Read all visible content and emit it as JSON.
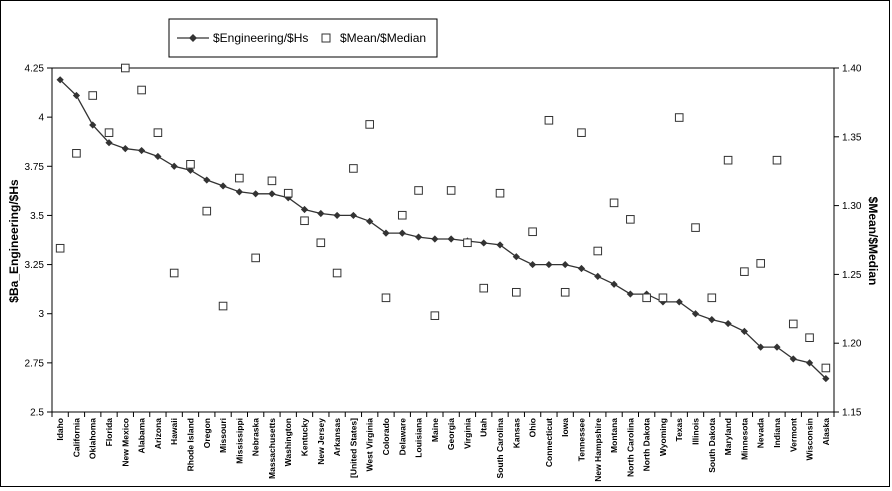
{
  "chart_data": {
    "type": "line",
    "categories": [
      "Idaho",
      "California",
      "Oklahoma",
      "Florida",
      "New Mexico",
      "Alabama",
      "Arizona",
      "Hawaii",
      "Rhode Island",
      "Oregon",
      "Missouri",
      "Mississippi",
      "Nebraska",
      "Massachusetts",
      "Washington",
      "Kentucky",
      "New Jersey",
      "Arkansas",
      "[United States]",
      "West Virginia",
      "Colorado",
      "Delaware",
      "Louisiana",
      "Maine",
      "Georgia",
      "Virginia",
      "Utah",
      "South Carolina",
      "Kansas",
      "Ohio",
      "Connecticut",
      "Iowa",
      "Tennessee",
      "New Hampshire",
      "Montana",
      "North Carolina",
      "North Dakota",
      "Wyoming",
      "Texas",
      "Illinois",
      "South Dakota",
      "Maryland",
      "Minnesota",
      "Nevada",
      "Indiana",
      "Vermont",
      "Wisconsin",
      "Alaska"
    ],
    "series": [
      {
        "name": "$Engineering/$Hs",
        "marker": "diamond",
        "axis": "left",
        "color": "#333333",
        "values": [
          4.19,
          4.11,
          3.96,
          3.87,
          3.84,
          3.83,
          3.8,
          3.75,
          3.73,
          3.68,
          3.65,
          3.62,
          3.61,
          3.61,
          3.59,
          3.53,
          3.51,
          3.5,
          3.5,
          3.47,
          3.41,
          3.41,
          3.39,
          3.38,
          3.38,
          3.37,
          3.36,
          3.35,
          3.29,
          3.25,
          3.25,
          3.25,
          3.23,
          3.19,
          3.15,
          3.1,
          3.1,
          3.06,
          3.06,
          3.0,
          2.97,
          2.95,
          2.91,
          2.83,
          2.83,
          2.77,
          2.75,
          2.67
        ]
      },
      {
        "name": "$Mean/$Median",
        "marker": "square-open",
        "axis": "right",
        "color": "#000000",
        "values": [
          1.269,
          1.338,
          1.38,
          1.353,
          1.4,
          1.384,
          1.353,
          1.251,
          1.33,
          1.296,
          1.227,
          1.32,
          1.262,
          1.318,
          1.309,
          1.289,
          1.273,
          1.251,
          1.327,
          1.359,
          1.233,
          1.293,
          1.311,
          1.22,
          1.311,
          1.273,
          1.24,
          1.309,
          1.237,
          1.281,
          1.362,
          1.237,
          1.353,
          1.267,
          1.302,
          1.29,
          1.233,
          1.233,
          1.364,
          1.284,
          1.233,
          1.333,
          1.252,
          1.258,
          1.333,
          1.214,
          1.204,
          1.182
        ]
      }
    ],
    "ylabel": "$Ba_Engineering/$Hs",
    "y2label": "$Mean/$Median",
    "ylim": [
      2.5,
      4.25
    ],
    "y2lim": [
      1.15,
      1.4
    ],
    "yticks": [
      "4.25",
      "4",
      "3.75",
      "3.5",
      "3.25",
      "3",
      "2.75",
      "2.5"
    ],
    "y2ticks": [
      "1.40",
      "1.35",
      "1.30",
      "1.25",
      "1.20",
      "1.15"
    ],
    "legend_position": "top",
    "grid": false
  }
}
